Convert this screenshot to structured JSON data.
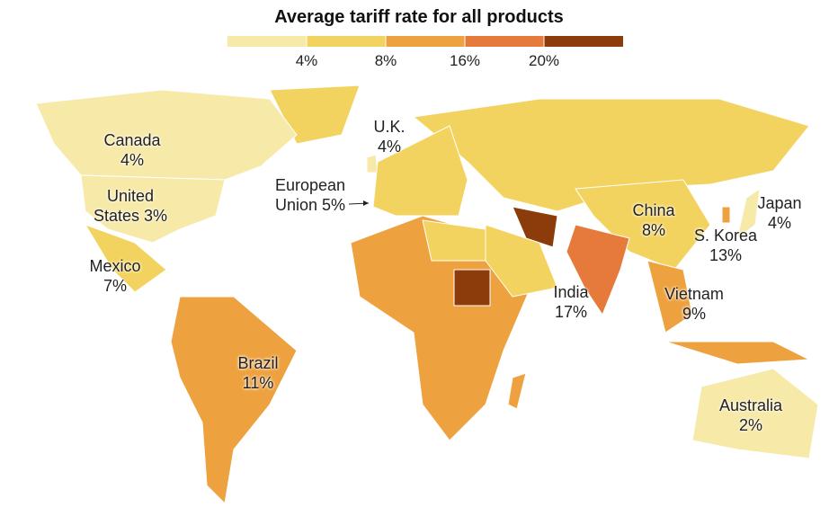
{
  "title": "Average tariff rate for all products",
  "legend": {
    "colors": [
      "#f7e9a8",
      "#f3d35f",
      "#eea23f",
      "#e57a3a",
      "#8c3b0a"
    ],
    "ticks": [
      {
        "value": 4,
        "label": "4%"
      },
      {
        "value": 8,
        "label": "8%"
      },
      {
        "value": 16,
        "label": "16%"
      },
      {
        "value": 20,
        "label": "20%"
      }
    ]
  },
  "labels": [
    {
      "name": "Canada",
      "value": 4,
      "value_label": "4%"
    },
    {
      "name": "United States",
      "value": 3,
      "value_label": "3%"
    },
    {
      "name": "Mexico",
      "value": 7,
      "value_label": "7%"
    },
    {
      "name": "Brazil",
      "value": 11,
      "value_label": "11%"
    },
    {
      "name": "U.K.",
      "value": 4,
      "value_label": "4%"
    },
    {
      "name": "European Union",
      "value": 5,
      "value_label": "5%"
    },
    {
      "name": "China",
      "value": 8,
      "value_label": "8%"
    },
    {
      "name": "S. Korea",
      "value": 13,
      "value_label": "13%"
    },
    {
      "name": "Japan",
      "value": 4,
      "value_label": "4%"
    },
    {
      "name": "India",
      "value": 17,
      "value_label": "17%"
    },
    {
      "name": "Vietnam",
      "value": 9,
      "value_label": "9%"
    },
    {
      "name": "Australia",
      "value": 2,
      "value_label": "2%"
    }
  ]
}
